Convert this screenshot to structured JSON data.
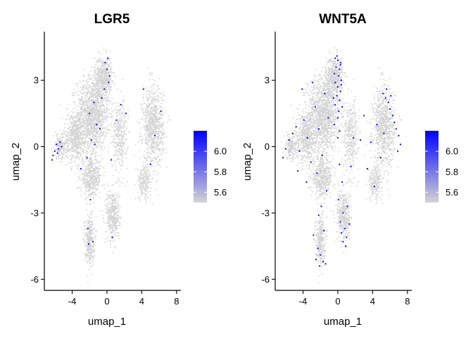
{
  "chart_data": [
    {
      "type": "scatter",
      "title": "LGR5",
      "xlabel": "umap_1",
      "ylabel": "umap_2",
      "xlim": [
        -7.2,
        8.5
      ],
      "ylim": [
        -6.5,
        5.2
      ],
      "x_ticks": [
        -4,
        0,
        4,
        8
      ],
      "x_tick_labels": [
        "-4",
        "0",
        "4",
        "8"
      ],
      "y_ticks": [
        -6,
        -3,
        0,
        3
      ],
      "y_tick_labels": [
        "-6",
        "-3",
        "0",
        "3"
      ],
      "grid": false,
      "legend_position": "right",
      "colorbar": {
        "min_value": 5.5,
        "max_value": 6.2,
        "ticks": [
          5.6,
          5.8,
          6.0
        ],
        "tick_labels": [
          "5.6",
          "5.8",
          "6.0"
        ],
        "low_color": "#d3d3d3",
        "high_color": "#0000ff"
      },
      "points": [
        {
          "x": -6.2,
          "y": -0.4
        },
        {
          "x": -6.0,
          "y": -0.2
        },
        {
          "x": -5.8,
          "y": 0.1
        },
        {
          "x": -5.6,
          "y": -0.1
        },
        {
          "x": -5.4,
          "y": 0.2
        },
        {
          "x": -5.2,
          "y": 0.0
        },
        {
          "x": -6.3,
          "y": -0.6
        },
        {
          "x": -5.7,
          "y": -0.3
        },
        {
          "x": -1.5,
          "y": 2.0
        },
        {
          "x": -0.6,
          "y": 2.2
        },
        {
          "x": -1.2,
          "y": 1.0
        },
        {
          "x": -2.0,
          "y": 1.5
        },
        {
          "x": -0.2,
          "y": 3.8
        },
        {
          "x": 0.1,
          "y": 4.0
        },
        {
          "x": -0.3,
          "y": 2.6
        },
        {
          "x": 0.2,
          "y": 2.9
        },
        {
          "x": -1.8,
          "y": 0.3
        },
        {
          "x": -0.8,
          "y": 0.8
        },
        {
          "x": -1.4,
          "y": 0.1
        },
        {
          "x": -2.3,
          "y": -0.5
        },
        {
          "x": 1.1,
          "y": 1.2
        },
        {
          "x": 0.5,
          "y": -0.6
        },
        {
          "x": 1.6,
          "y": 1.9
        },
        {
          "x": 2.2,
          "y": 1.5
        },
        {
          "x": -3.0,
          "y": -1.0
        },
        {
          "x": -1.9,
          "y": -2.4
        },
        {
          "x": -1.6,
          "y": -4.3
        },
        {
          "x": -2.1,
          "y": -4.4
        },
        {
          "x": -2.2,
          "y": -3.7
        },
        {
          "x": 0.6,
          "y": -4.1
        },
        {
          "x": 5.5,
          "y": 0.5
        },
        {
          "x": 6.2,
          "y": 1.6
        },
        {
          "x": 4.2,
          "y": 2.6
        },
        {
          "x": 5.0,
          "y": -0.8
        },
        {
          "x": 0.3,
          "y": 3.2
        },
        {
          "x": 0.0,
          "y": 3.5
        }
      ]
    },
    {
      "type": "scatter",
      "title": "WNT5A",
      "xlabel": "umap_1",
      "ylabel": "umap_2",
      "xlim": [
        -7.2,
        8.5
      ],
      "ylim": [
        -6.5,
        5.2
      ],
      "x_ticks": [
        -4,
        0,
        4,
        8
      ],
      "x_tick_labels": [
        "-4",
        "0",
        "4",
        "8"
      ],
      "y_ticks": [
        -6,
        -3,
        0,
        3
      ],
      "y_tick_labels": [
        "-6",
        "-3",
        "0",
        "3"
      ],
      "grid": false,
      "legend_position": "right",
      "colorbar": {
        "min_value": 5.5,
        "max_value": 6.2,
        "ticks": [
          5.6,
          5.8,
          6.0
        ],
        "tick_labels": [
          "5.6",
          "5.8",
          "6.0"
        ],
        "low_color": "#d3d3d3",
        "high_color": "#0000ff"
      },
      "points_description_note": "",
      "points": [
        {
          "x": -0.3,
          "y": 4.0
        },
        {
          "x": 0.0,
          "y": 3.9
        },
        {
          "x": 0.3,
          "y": 3.8
        },
        {
          "x": -0.2,
          "y": 3.6
        },
        {
          "x": 0.2,
          "y": 3.5
        },
        {
          "x": -0.4,
          "y": 3.3
        },
        {
          "x": 0.1,
          "y": 3.2
        },
        {
          "x": 0.4,
          "y": 3.0
        },
        {
          "x": -0.3,
          "y": 2.9
        },
        {
          "x": 0.0,
          "y": 2.7
        },
        {
          "x": 0.3,
          "y": 2.5
        },
        {
          "x": -0.1,
          "y": 2.3
        },
        {
          "x": 0.2,
          "y": 2.1
        },
        {
          "x": -0.3,
          "y": 1.9
        },
        {
          "x": 0.1,
          "y": 1.6
        },
        {
          "x": 0.0,
          "y": 1.3
        },
        {
          "x": -0.4,
          "y": 1.0
        },
        {
          "x": 0.2,
          "y": 0.7
        },
        {
          "x": 0.0,
          "y": 0.4
        },
        {
          "x": 0.3,
          "y": 3.7
        },
        {
          "x": -0.1,
          "y": 4.1
        },
        {
          "x": 0.4,
          "y": 2.8
        },
        {
          "x": -0.5,
          "y": 2.2
        },
        {
          "x": 0.5,
          "y": 1.8
        },
        {
          "x": 5.2,
          "y": 2.4
        },
        {
          "x": 5.5,
          "y": 2.2
        },
        {
          "x": 5.8,
          "y": 2.0
        },
        {
          "x": 6.0,
          "y": 1.7
        },
        {
          "x": 6.3,
          "y": 1.4
        },
        {
          "x": 6.5,
          "y": 1.1
        },
        {
          "x": 6.7,
          "y": 0.8
        },
        {
          "x": 7.0,
          "y": 0.5
        },
        {
          "x": 7.2,
          "y": 0.1
        },
        {
          "x": 6.9,
          "y": -0.2
        },
        {
          "x": 5.6,
          "y": 2.6
        },
        {
          "x": 6.1,
          "y": 2.3
        },
        {
          "x": 4.5,
          "y": 1.0
        },
        {
          "x": 3.8,
          "y": 0.2
        },
        {
          "x": 4.9,
          "y": -0.5
        },
        {
          "x": 3.4,
          "y": -1.0
        },
        {
          "x": 4.2,
          "y": -1.8
        },
        {
          "x": 3.0,
          "y": 1.4
        },
        {
          "x": 2.6,
          "y": 0.3
        },
        {
          "x": 5.3,
          "y": 0.6
        },
        {
          "x": -6.3,
          "y": -0.5
        },
        {
          "x": -6.0,
          "y": -0.1
        },
        {
          "x": -5.6,
          "y": 0.3
        },
        {
          "x": -5.2,
          "y": 0.6
        },
        {
          "x": -4.8,
          "y": 0.9
        },
        {
          "x": -4.4,
          "y": -0.2
        },
        {
          "x": -3.9,
          "y": 1.2
        },
        {
          "x": -3.5,
          "y": 0.4
        },
        {
          "x": -3.1,
          "y": -0.7
        },
        {
          "x": -2.6,
          "y": 1.8
        },
        {
          "x": -2.2,
          "y": 0.8
        },
        {
          "x": -1.8,
          "y": -0.4
        },
        {
          "x": -1.5,
          "y": 2.4
        },
        {
          "x": -1.1,
          "y": 1.3
        },
        {
          "x": -2.9,
          "y": 2.9
        },
        {
          "x": -4.1,
          "y": 2.6
        },
        {
          "x": -3.6,
          "y": -1.6
        },
        {
          "x": -2.4,
          "y": -1.2
        },
        {
          "x": -1.3,
          "y": -2.0
        },
        {
          "x": -4.6,
          "y": -1.1
        },
        {
          "x": 0.2,
          "y": -0.8
        },
        {
          "x": 0.5,
          "y": -1.6
        },
        {
          "x": 0.1,
          "y": -2.4
        },
        {
          "x": 0.6,
          "y": -3.0
        },
        {
          "x": 0.3,
          "y": -3.4
        },
        {
          "x": 0.8,
          "y": -3.7
        },
        {
          "x": 0.4,
          "y": -3.9
        },
        {
          "x": 1.0,
          "y": -4.1
        },
        {
          "x": 0.6,
          "y": -4.3
        },
        {
          "x": 1.3,
          "y": -3.5
        },
        {
          "x": 1.1,
          "y": -2.7
        },
        {
          "x": 0.9,
          "y": -4.5
        },
        {
          "x": -2.3,
          "y": -4.6
        },
        {
          "x": -2.0,
          "y": -4.9
        },
        {
          "x": -1.7,
          "y": -5.2
        },
        {
          "x": -2.5,
          "y": -5.1
        },
        {
          "x": -1.4,
          "y": -5.3
        },
        {
          "x": -2.1,
          "y": -5.4
        },
        {
          "x": -1.6,
          "y": -3.8
        },
        {
          "x": -2.2,
          "y": -3.1
        },
        {
          "x": -1.9,
          "y": -2.7
        },
        {
          "x": -2.8,
          "y": -4.0
        },
        {
          "x": 1.8,
          "y": 0.4
        },
        {
          "x": 1.5,
          "y": -0.9
        }
      ]
    }
  ]
}
